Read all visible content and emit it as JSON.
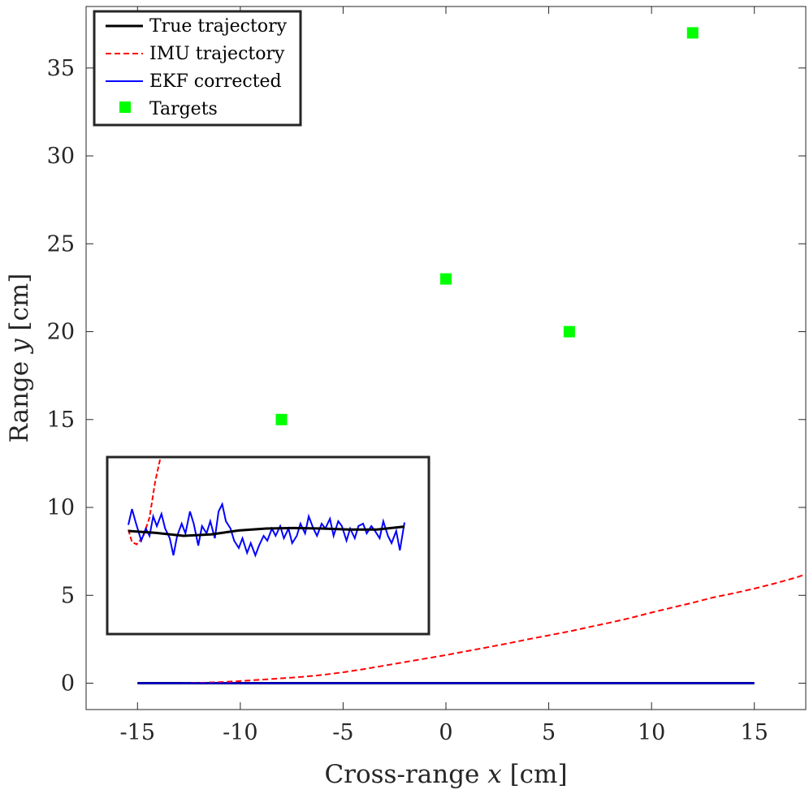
{
  "chart_data": {
    "type": "line",
    "xlabel_prefix": "Cross-range ",
    "xlabel_var": "x",
    "xlabel_unit": " [cm]",
    "ylabel_prefix": "Range ",
    "ylabel_var": "y",
    "ylabel_unit": " [cm]",
    "xlim": [
      -17.5,
      17.5
    ],
    "ylim": [
      -1.5,
      38.5
    ],
    "xticks": [
      -15,
      -10,
      -5,
      0,
      5,
      10,
      15
    ],
    "xtick_labels": [
      "-15",
      "-10",
      "-5",
      "0",
      "5",
      "10",
      "15"
    ],
    "yticks": [
      0,
      5,
      10,
      15,
      20,
      25,
      30,
      35
    ],
    "ytick_labels": [
      "0",
      "5",
      "10",
      "15",
      "20",
      "25",
      "30",
      "35"
    ],
    "grid": false,
    "legend_position": "top-left",
    "legend": [
      {
        "label": "True trajectory",
        "color": "#000000",
        "style": "solid"
      },
      {
        "label": "IMU trajectory",
        "color": "#ff0000",
        "style": "dashed"
      },
      {
        "label": "EKF corrected",
        "color": "#0000ff",
        "style": "solid"
      },
      {
        "label": "Targets",
        "color": "#00ff00",
        "style": "square"
      }
    ],
    "series": [
      {
        "name": "True trajectory",
        "x": [
          -15,
          15
        ],
        "y": [
          0,
          0
        ]
      },
      {
        "name": "IMU trajectory",
        "x": [
          -15,
          -14,
          -13,
          -12,
          -11,
          -10,
          -9,
          -8,
          -7,
          -6,
          -5,
          -4,
          -3,
          -2,
          -1,
          0,
          1,
          2,
          3,
          4,
          5,
          6,
          7,
          8,
          9,
          10,
          11,
          12,
          13,
          14,
          15,
          16,
          17,
          17.5
        ],
        "y": [
          0,
          0,
          0,
          0.02,
          0.06,
          0.12,
          0.2,
          0.28,
          0.36,
          0.47,
          0.62,
          0.8,
          1.0,
          1.2,
          1.4,
          1.6,
          1.82,
          2.04,
          2.26,
          2.5,
          2.72,
          2.95,
          3.2,
          3.45,
          3.72,
          4.02,
          4.3,
          4.58,
          4.88,
          5.12,
          5.38,
          5.68,
          6.0,
          6.2
        ]
      },
      {
        "name": "EKF corrected",
        "x": [
          -15,
          15
        ],
        "y": [
          0,
          0
        ]
      }
    ],
    "targets": [
      {
        "x": -8,
        "y": 15
      },
      {
        "x": 0,
        "y": 23
      },
      {
        "x": 6,
        "y": 20
      },
      {
        "x": 12,
        "y": 37
      }
    ],
    "inset": {
      "true": [
        [
          -15,
          0
        ],
        [
          -12,
          -0.08
        ],
        [
          -9,
          -0.2
        ],
        [
          -6,
          -0.14
        ],
        [
          -3,
          0.02
        ],
        [
          0,
          0.1
        ],
        [
          3,
          0.12
        ],
        [
          6,
          0.1
        ],
        [
          9,
          0.06
        ],
        [
          12,
          0.06
        ],
        [
          15,
          0.18
        ]
      ],
      "imu": [
        [
          -15,
          0.05
        ],
        [
          -14.6,
          -0.45
        ],
        [
          -14.1,
          -0.55
        ],
        [
          -13.4,
          -0.25
        ],
        [
          -12.7,
          0.55
        ],
        [
          -12.1,
          2.0
        ],
        [
          -11.5,
          4.8
        ]
      ],
      "ekf": [
        [
          -15,
          0.25
        ],
        [
          -14.6,
          0.9
        ],
        [
          -14.2,
          0.35
        ],
        [
          -13.6,
          -0.4
        ],
        [
          -13.1,
          0.1
        ],
        [
          -12.7,
          -0.2
        ],
        [
          -12.3,
          0.6
        ],
        [
          -11.9,
          0.2
        ],
        [
          -11.4,
          0.7
        ],
        [
          -11,
          0.1
        ],
        [
          -10.5,
          -0.3
        ],
        [
          -10.1,
          -1.0
        ],
        [
          -9.7,
          -0.2
        ],
        [
          -9.2,
          0.3
        ],
        [
          -8.8,
          -0.1
        ],
        [
          -8.3,
          0.8
        ],
        [
          -7.9,
          0.3
        ],
        [
          -7.4,
          -0.6
        ],
        [
          -7,
          0.2
        ],
        [
          -6.5,
          -0.1
        ],
        [
          -6.1,
          0.4
        ],
        [
          -5.6,
          -0.3
        ],
        [
          -5.2,
          0.8
        ],
        [
          -4.8,
          1.1
        ],
        [
          -4.4,
          0.4
        ],
        [
          -3.9,
          0.1
        ],
        [
          -3.5,
          -0.4
        ],
        [
          -3,
          -0.7
        ],
        [
          -2.6,
          -0.3
        ],
        [
          -2.1,
          -0.9
        ],
        [
          -1.7,
          -0.5
        ],
        [
          -1.2,
          -1.0
        ],
        [
          -0.8,
          -0.6
        ],
        [
          -0.3,
          -0.2
        ],
        [
          0.1,
          -0.4
        ],
        [
          0.6,
          0.1
        ],
        [
          1,
          -0.2
        ],
        [
          1.5,
          0.2
        ],
        [
          1.9,
          -0.3
        ],
        [
          2.4,
          0.1
        ],
        [
          2.8,
          -0.5
        ],
        [
          3.3,
          -0.2
        ],
        [
          3.7,
          0.3
        ],
        [
          4.2,
          -0.1
        ],
        [
          4.6,
          0.6
        ],
        [
          5.1,
          0.1
        ],
        [
          5.5,
          -0.2
        ],
        [
          6,
          0.3
        ],
        [
          6.4,
          0.1
        ],
        [
          6.9,
          0.5
        ],
        [
          7.3,
          -0.2
        ],
        [
          7.8,
          0.4
        ],
        [
          8.2,
          0.2
        ],
        [
          8.7,
          -0.4
        ],
        [
          9.1,
          0.1
        ],
        [
          9.6,
          -0.3
        ],
        [
          10,
          0.2
        ],
        [
          10.5,
          0.3
        ],
        [
          10.9,
          -0.1
        ],
        [
          11.4,
          0.2
        ],
        [
          11.8,
          0.0
        ],
        [
          12.3,
          -0.3
        ],
        [
          12.7,
          0.4
        ],
        [
          13.2,
          -0.2
        ],
        [
          13.6,
          -0.5
        ],
        [
          14.1,
          0.0
        ],
        [
          14.5,
          -0.8
        ],
        [
          15,
          0.35
        ]
      ]
    }
  }
}
